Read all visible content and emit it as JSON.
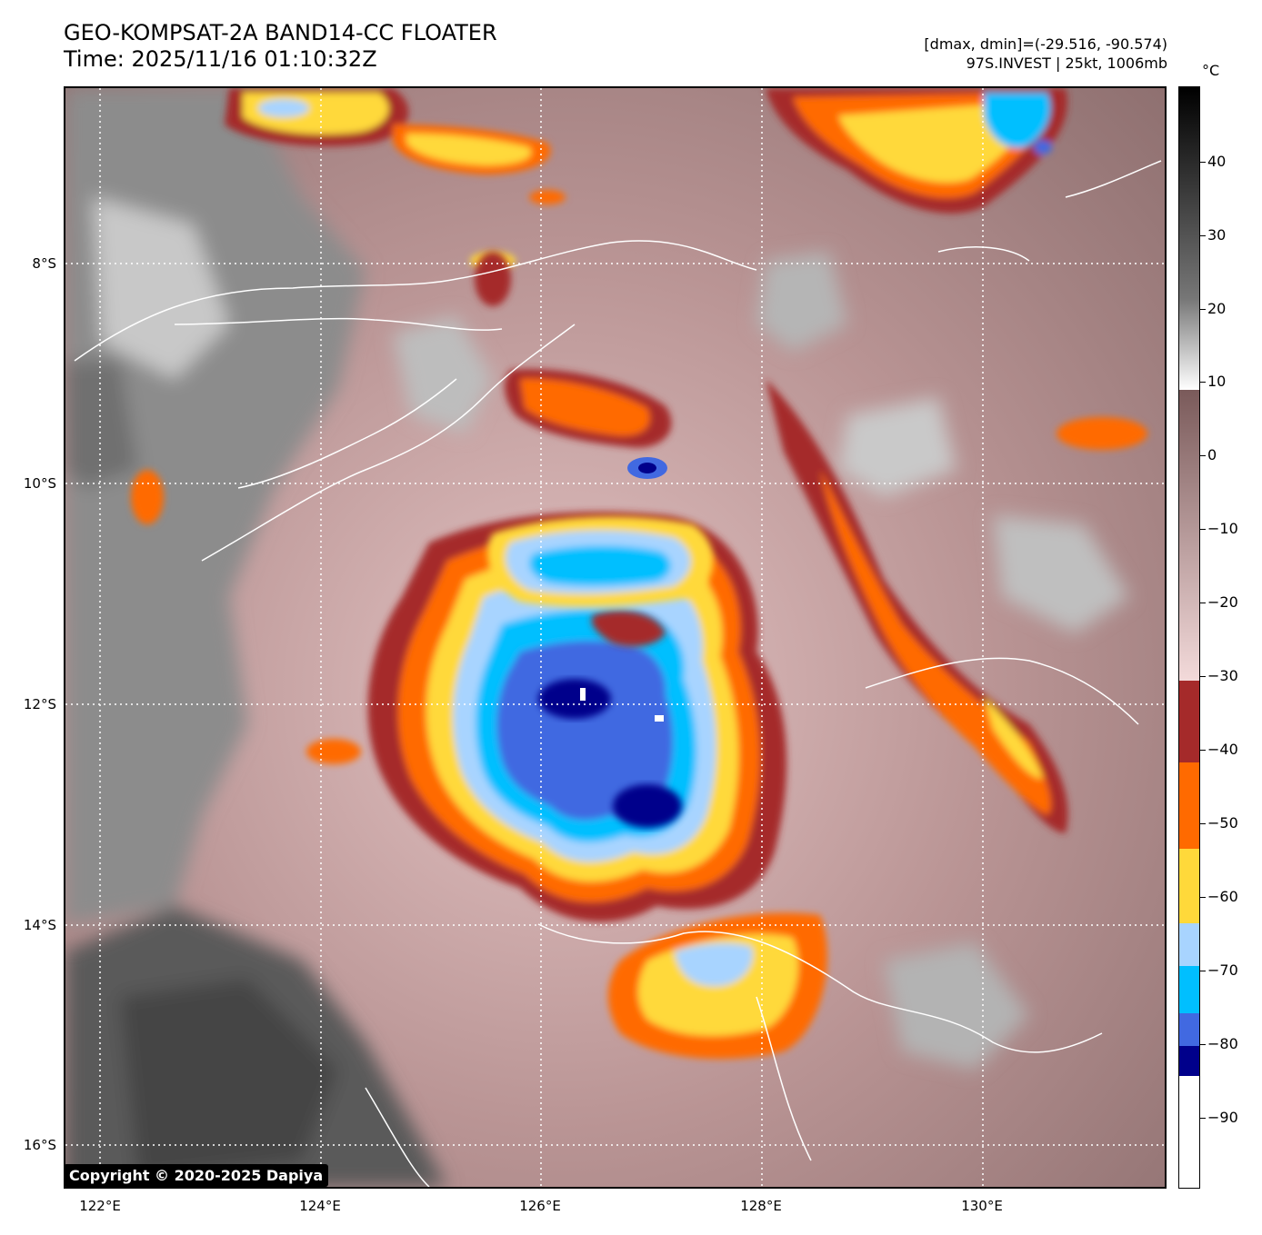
{
  "header": {
    "title_line1": "GEO-KOMPSAT-2A BAND14-CC FLOATER",
    "title_line2": "Time: 2025/11/16 01:10:32Z",
    "info_line1": "[dmax, dmin]=(-29.516, -90.574)",
    "info_line2": "97S.INVEST | 25kt, 1006mb"
  },
  "map": {
    "lat_labels": [
      "8°S",
      "10°S",
      "12°S",
      "14°S",
      "16°S"
    ],
    "lon_labels": [
      "122°E",
      "124°E",
      "126°E",
      "128°E",
      "130°E"
    ],
    "copyright": "Copyright © 2020-2025 Dapiya",
    "colors": {
      "background_warm": "#9a7a7a",
      "cold_red": "#a52a2a",
      "cold_orange": "#ff6a00",
      "cold_yellow": "#ffd93a",
      "cold_lightblue": "#a8d4ff",
      "cold_cyan": "#00bfff",
      "cold_blue": "#4169e1",
      "cold_navy": "#00008b"
    }
  },
  "colorbar": {
    "unit": "°C",
    "ticks": [
      "40",
      "30",
      "20",
      "10",
      "0",
      "−10",
      "−20",
      "−30",
      "−40",
      "−50",
      "−60",
      "−70",
      "−80",
      "−90"
    ]
  }
}
